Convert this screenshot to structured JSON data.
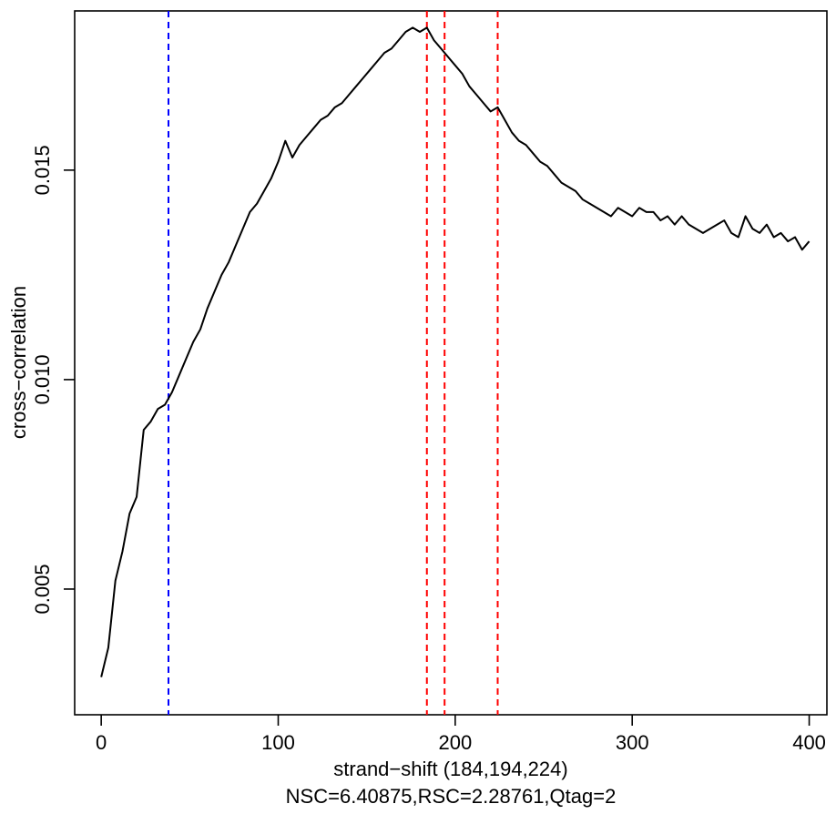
{
  "chart_data": {
    "type": "line",
    "xlabel": "strand−shift (184,194,224)",
    "subtitle": "NSC=6.40875,RSC=2.28761,Qtag=2",
    "ylabel": "cross−correlation",
    "xlim": [
      -15,
      410
    ],
    "ylim": [
      0.002,
      0.0188
    ],
    "x_ticks": [
      "0",
      "100",
      "200",
      "300",
      "400"
    ],
    "y_ticks": [
      "0.005",
      "0.010",
      "0.015"
    ],
    "x_tick_values": [
      0,
      100,
      200,
      300,
      400
    ],
    "y_tick_values": [
      0.005,
      0.01,
      0.015
    ],
    "grid": false,
    "vlines": [
      {
        "x": 38,
        "color": "#0000ff",
        "style": "dashed"
      },
      {
        "x": 184,
        "color": "#ff0000",
        "style": "dashed"
      },
      {
        "x": 194,
        "color": "#ff0000",
        "style": "dashed"
      },
      {
        "x": 224,
        "color": "#ff0000",
        "style": "dashed"
      }
    ],
    "series": [
      {
        "color": "#000000",
        "x": [
          0,
          4,
          8,
          12,
          16,
          20,
          24,
          28,
          32,
          36,
          40,
          44,
          48,
          52,
          56,
          60,
          64,
          68,
          72,
          76,
          80,
          84,
          88,
          92,
          96,
          100,
          104,
          108,
          112,
          116,
          120,
          124,
          128,
          132,
          136,
          140,
          144,
          148,
          152,
          156,
          160,
          164,
          168,
          172,
          176,
          180,
          184,
          188,
          192,
          196,
          200,
          204,
          208,
          212,
          216,
          220,
          224,
          228,
          232,
          236,
          240,
          244,
          248,
          252,
          256,
          260,
          264,
          268,
          272,
          276,
          280,
          284,
          288,
          292,
          296,
          300,
          304,
          308,
          312,
          316,
          320,
          324,
          328,
          332,
          336,
          340,
          344,
          348,
          352,
          356,
          360,
          364,
          368,
          372,
          376,
          380,
          384,
          388,
          392,
          396,
          400
        ],
        "values": [
          0.0029,
          0.0036,
          0.0052,
          0.0059,
          0.0068,
          0.0072,
          0.0088,
          0.009,
          0.0093,
          0.0094,
          0.0097,
          0.0101,
          0.0105,
          0.0109,
          0.0112,
          0.0117,
          0.0121,
          0.0125,
          0.0128,
          0.0132,
          0.0136,
          0.014,
          0.0142,
          0.0145,
          0.0148,
          0.0152,
          0.0157,
          0.0153,
          0.0156,
          0.0158,
          0.016,
          0.0162,
          0.0163,
          0.0165,
          0.0166,
          0.0168,
          0.017,
          0.0172,
          0.0174,
          0.0176,
          0.0178,
          0.0179,
          0.0181,
          0.0183,
          0.0184,
          0.0183,
          0.0184,
          0.0181,
          0.0179,
          0.0177,
          0.0175,
          0.0173,
          0.017,
          0.0168,
          0.0166,
          0.0164,
          0.0165,
          0.0162,
          0.0159,
          0.0157,
          0.0156,
          0.0154,
          0.0152,
          0.0151,
          0.0149,
          0.0147,
          0.0146,
          0.0145,
          0.0143,
          0.0142,
          0.0141,
          0.014,
          0.0139,
          0.0141,
          0.014,
          0.0139,
          0.0141,
          0.014,
          0.014,
          0.0138,
          0.0139,
          0.0137,
          0.0139,
          0.0137,
          0.0136,
          0.0135,
          0.0136,
          0.0137,
          0.0138,
          0.0135,
          0.0134,
          0.0139,
          0.0136,
          0.0135,
          0.0137,
          0.0134,
          0.0135,
          0.0133,
          0.0134,
          0.0131,
          0.0133
        ]
      }
    ]
  }
}
